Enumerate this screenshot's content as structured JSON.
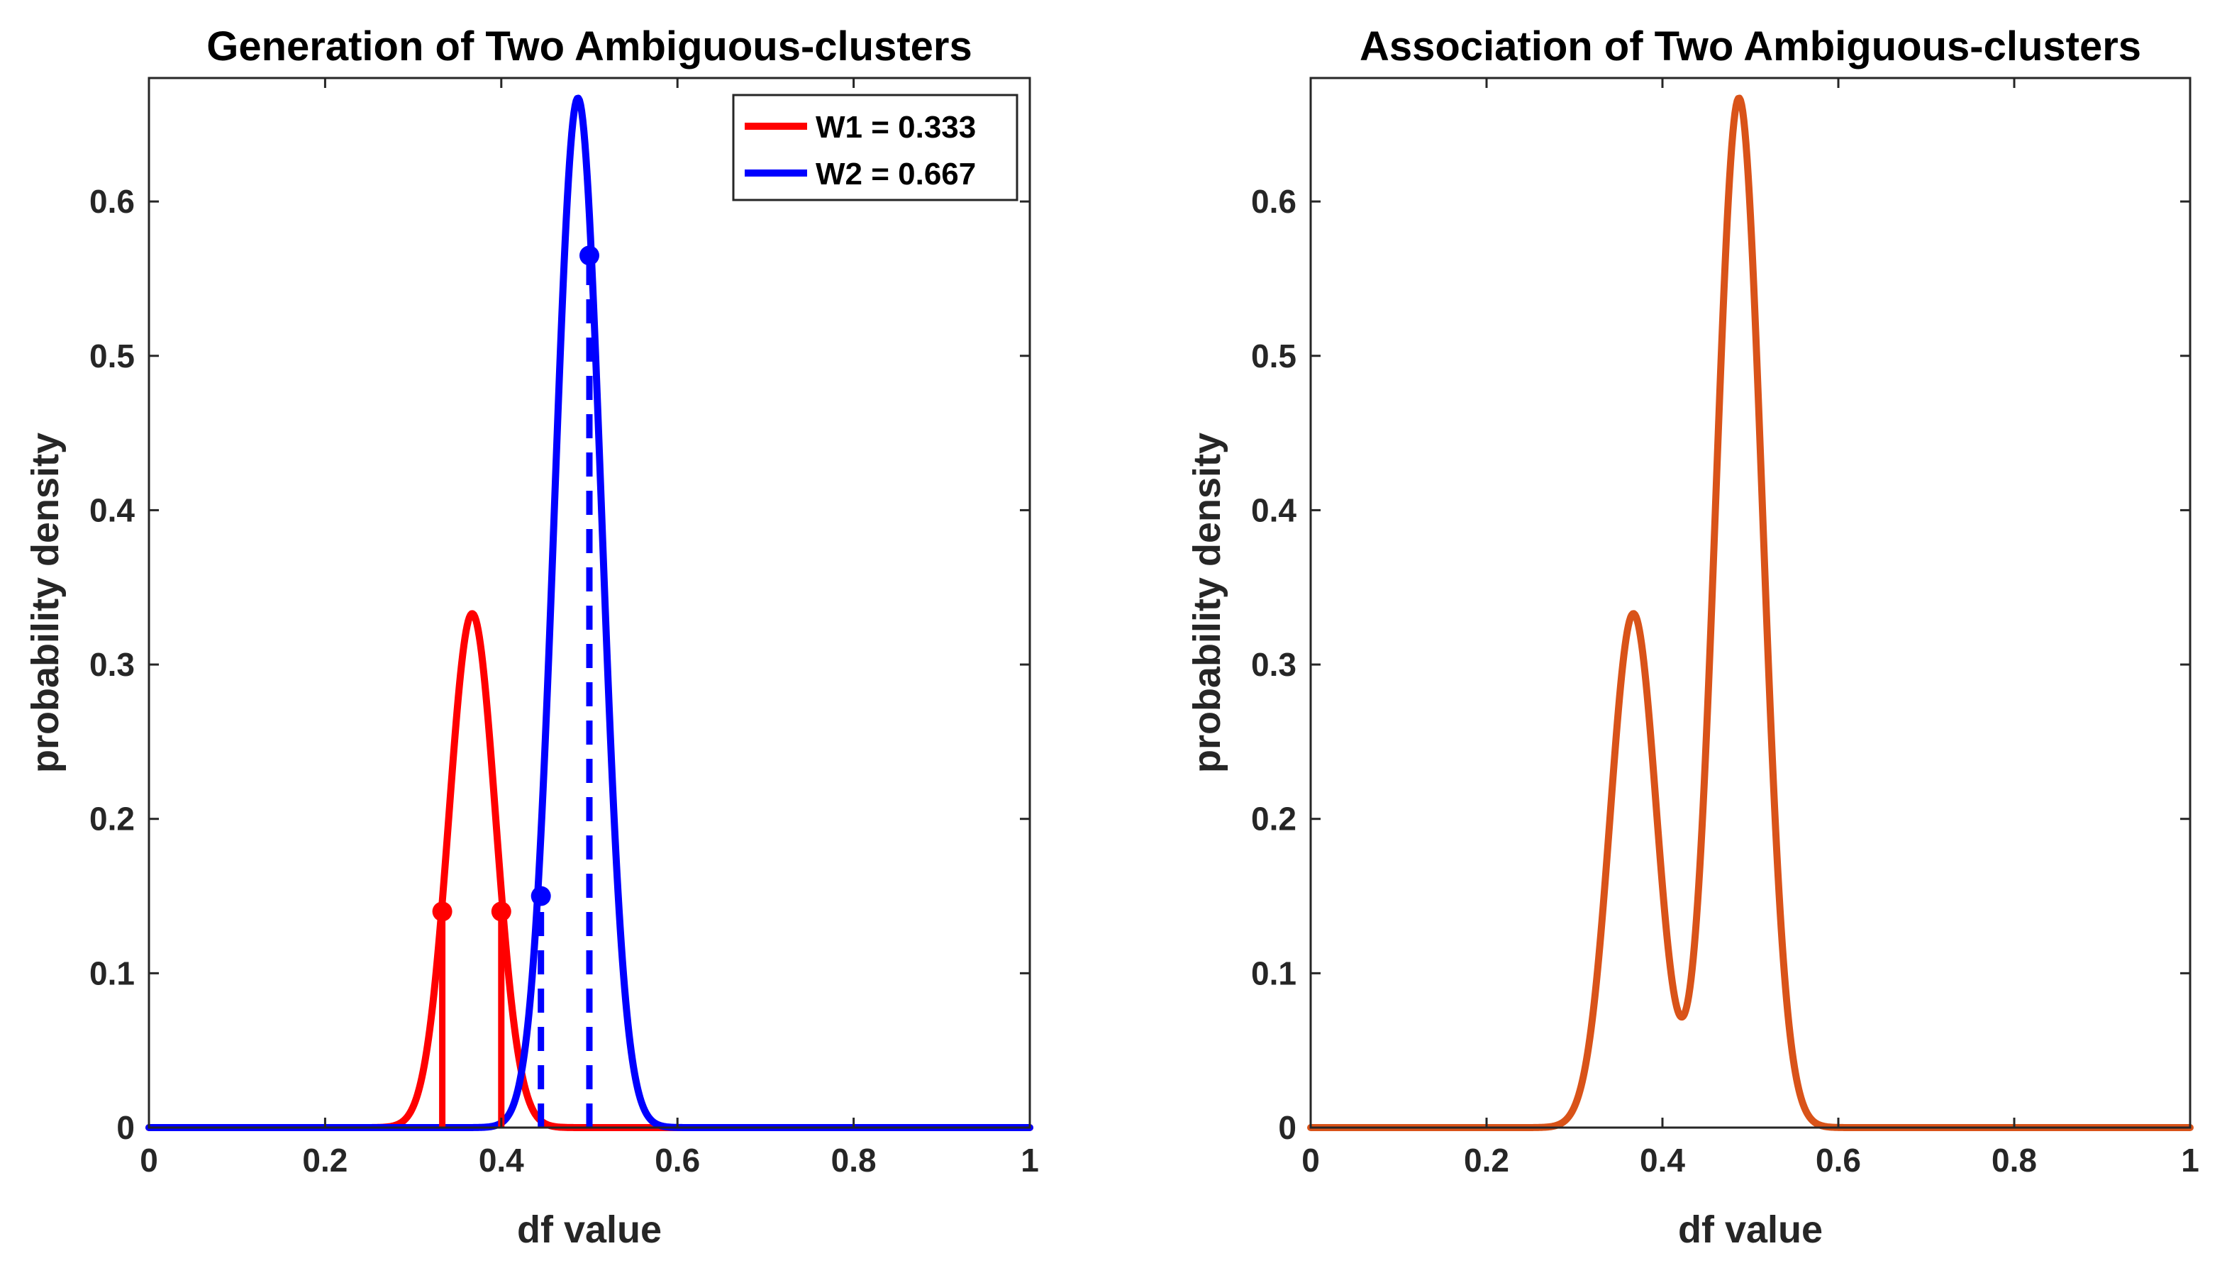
{
  "chart_data": [
    {
      "type": "line",
      "title": "Generation of Two Ambiguous-clusters",
      "xlabel": "df value",
      "ylabel": "probability density",
      "xlim": [
        0,
        1
      ],
      "ylim": [
        0,
        0.68
      ],
      "xticks": [
        0,
        0.2,
        0.4,
        0.6,
        0.8,
        1
      ],
      "xtick_labels": [
        "0",
        "0.2",
        "0.4",
        "0.6",
        "0.8",
        "1"
      ],
      "yticks": [
        0,
        0.1,
        0.2,
        0.3,
        0.4,
        0.5,
        0.6
      ],
      "ytick_labels": [
        "0",
        "0.1",
        "0.2",
        "0.3",
        "0.4",
        "0.5",
        "0.6"
      ],
      "legend_position": "top-right",
      "series": [
        {
          "name": "W1 = 0.333",
          "color": "#ff0000",
          "kind": "gaussian",
          "mean": 0.367,
          "peak": 0.333,
          "sigma": 0.0265
        },
        {
          "name": "W2 = 0.667",
          "color": "#0000ff",
          "kind": "gaussian",
          "mean": 0.487,
          "peak": 0.667,
          "sigma": 0.0265
        }
      ],
      "markers": [
        {
          "series": "W1 = 0.333",
          "x": 0.333,
          "y": 0.14,
          "line_style": "solid"
        },
        {
          "series": "W1 = 0.333",
          "x": 0.4,
          "y": 0.14,
          "line_style": "solid"
        },
        {
          "series": "W2 = 0.667",
          "x": 0.445,
          "y": 0.15,
          "line_style": "dashed"
        },
        {
          "series": "W2 = 0.667",
          "x": 0.5,
          "y": 0.565,
          "line_style": "dashed"
        }
      ]
    },
    {
      "type": "line",
      "title": "Association of Two Ambiguous-clusters",
      "xlabel": "df value",
      "ylabel": "probability density",
      "xlim": [
        0,
        1
      ],
      "ylim": [
        0,
        0.68
      ],
      "xticks": [
        0,
        0.2,
        0.4,
        0.6,
        0.8,
        1
      ],
      "xtick_labels": [
        "0",
        "0.2",
        "0.4",
        "0.6",
        "0.8",
        "1"
      ],
      "yticks": [
        0,
        0.1,
        0.2,
        0.3,
        0.4,
        0.5,
        0.6
      ],
      "ytick_labels": [
        "0",
        "0.1",
        "0.2",
        "0.3",
        "0.4",
        "0.5",
        "0.6"
      ],
      "series": [
        {
          "name": "mixture",
          "color": "#d95319",
          "kind": "gaussian-mixture",
          "components": [
            {
              "mean": 0.367,
              "peak": 0.333,
              "sigma": 0.0265
            },
            {
              "mean": 0.487,
              "peak": 0.667,
              "sigma": 0.0265
            }
          ]
        }
      ],
      "markers": []
    }
  ]
}
